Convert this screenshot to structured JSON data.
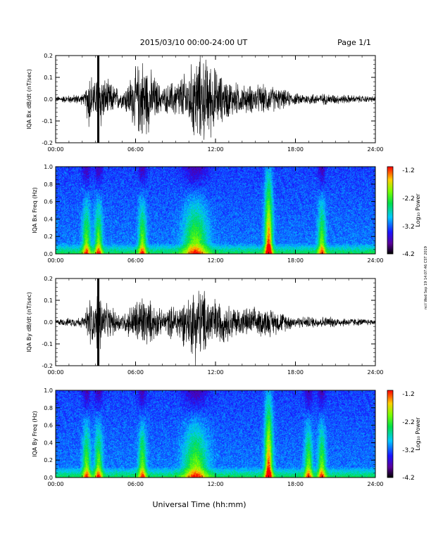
{
  "header": {
    "title": "2015/03/10  00:00-24:00 UT",
    "page": "Page 1/1"
  },
  "footer": {
    "xlabel": "Universal Time (hh:mm)",
    "timestamp": "ncil Wed Sep 19 14:07:46 CST 2019"
  },
  "colorbar": {
    "label": "Log₁₀ Power",
    "ticks": [
      "-1.2",
      "-2.2",
      "-3.2",
      "-4.2"
    ]
  },
  "chart_data": [
    {
      "type": "line",
      "ylabel": "IQA Bx dB/dt (nT/sec)",
      "xlim": [
        0,
        24
      ],
      "ylim": [
        -0.2,
        0.2
      ],
      "x_ticks": [
        "00:00",
        "06:00",
        "12:00",
        "18:00",
        "24:00"
      ],
      "y_ticks": [
        "0.2",
        "0.1",
        "0.0",
        "-0.1",
        "-0.2"
      ],
      "series": [
        {
          "x_hours": [
            0,
            2.2,
            2.5,
            3.0,
            3.2,
            3.5,
            5.0,
            6.5,
            8.0,
            10.0,
            10.5,
            11.5,
            12.5,
            14.0,
            16.0,
            18.0,
            20.0,
            24.0
          ],
          "amplitude": [
            0.01,
            0.02,
            0.12,
            0.05,
            0.2,
            0.08,
            0.03,
            0.15,
            0.04,
            0.1,
            0.16,
            0.14,
            0.08,
            0.05,
            0.05,
            0.02,
            0.02,
            0.01
          ]
        }
      ]
    },
    {
      "type": "heatmap",
      "ylabel": "IQA Bx Freq (Hz)",
      "xlim": [
        0,
        24
      ],
      "ylim": [
        0.0,
        1.0
      ],
      "zlim": [
        -4.2,
        -1.2
      ],
      "x_ticks": [
        "00:00",
        "06:00",
        "12:00",
        "18:00",
        "24:00"
      ],
      "y_ticks": [
        "1.0",
        "0.8",
        "0.6",
        "0.4",
        "0.2",
        "0.0"
      ],
      "features_hours": [
        2.3,
        3.2,
        6.5,
        10.5,
        16.0,
        20.0
      ]
    },
    {
      "type": "line",
      "ylabel": "IQA By dB/dt (nT/sec)",
      "xlim": [
        0,
        24
      ],
      "ylim": [
        -0.2,
        0.2
      ],
      "x_ticks": [
        "00:00",
        "06:00",
        "12:00",
        "18:00",
        "24:00"
      ],
      "y_ticks": [
        "0.2",
        "0.1",
        "0.0",
        "-0.1",
        "-0.2"
      ],
      "series": [
        {
          "x_hours": [
            0,
            2.2,
            2.5,
            3.0,
            3.2,
            3.5,
            5.0,
            6.5,
            8.0,
            10.0,
            10.5,
            11.5,
            12.5,
            14.0,
            16.0,
            18.0,
            20.0,
            24.0
          ],
          "amplitude": [
            0.01,
            0.02,
            0.1,
            0.05,
            0.2,
            0.07,
            0.03,
            0.1,
            0.04,
            0.09,
            0.14,
            0.1,
            0.07,
            0.05,
            0.05,
            0.02,
            0.02,
            0.01
          ]
        }
      ]
    },
    {
      "type": "heatmap",
      "ylabel": "IQA By Freq (Hz)",
      "xlim": [
        0,
        24
      ],
      "ylim": [
        0.0,
        1.0
      ],
      "zlim": [
        -4.2,
        -1.2
      ],
      "x_ticks": [
        "00:00",
        "06:00",
        "12:00",
        "18:00",
        "24:00"
      ],
      "y_ticks": [
        "1.0",
        "0.8",
        "0.6",
        "0.4",
        "0.2",
        "0.0"
      ],
      "features_hours": [
        2.3,
        3.2,
        6.5,
        10.5,
        16.0,
        19.0,
        20.0
      ]
    }
  ]
}
